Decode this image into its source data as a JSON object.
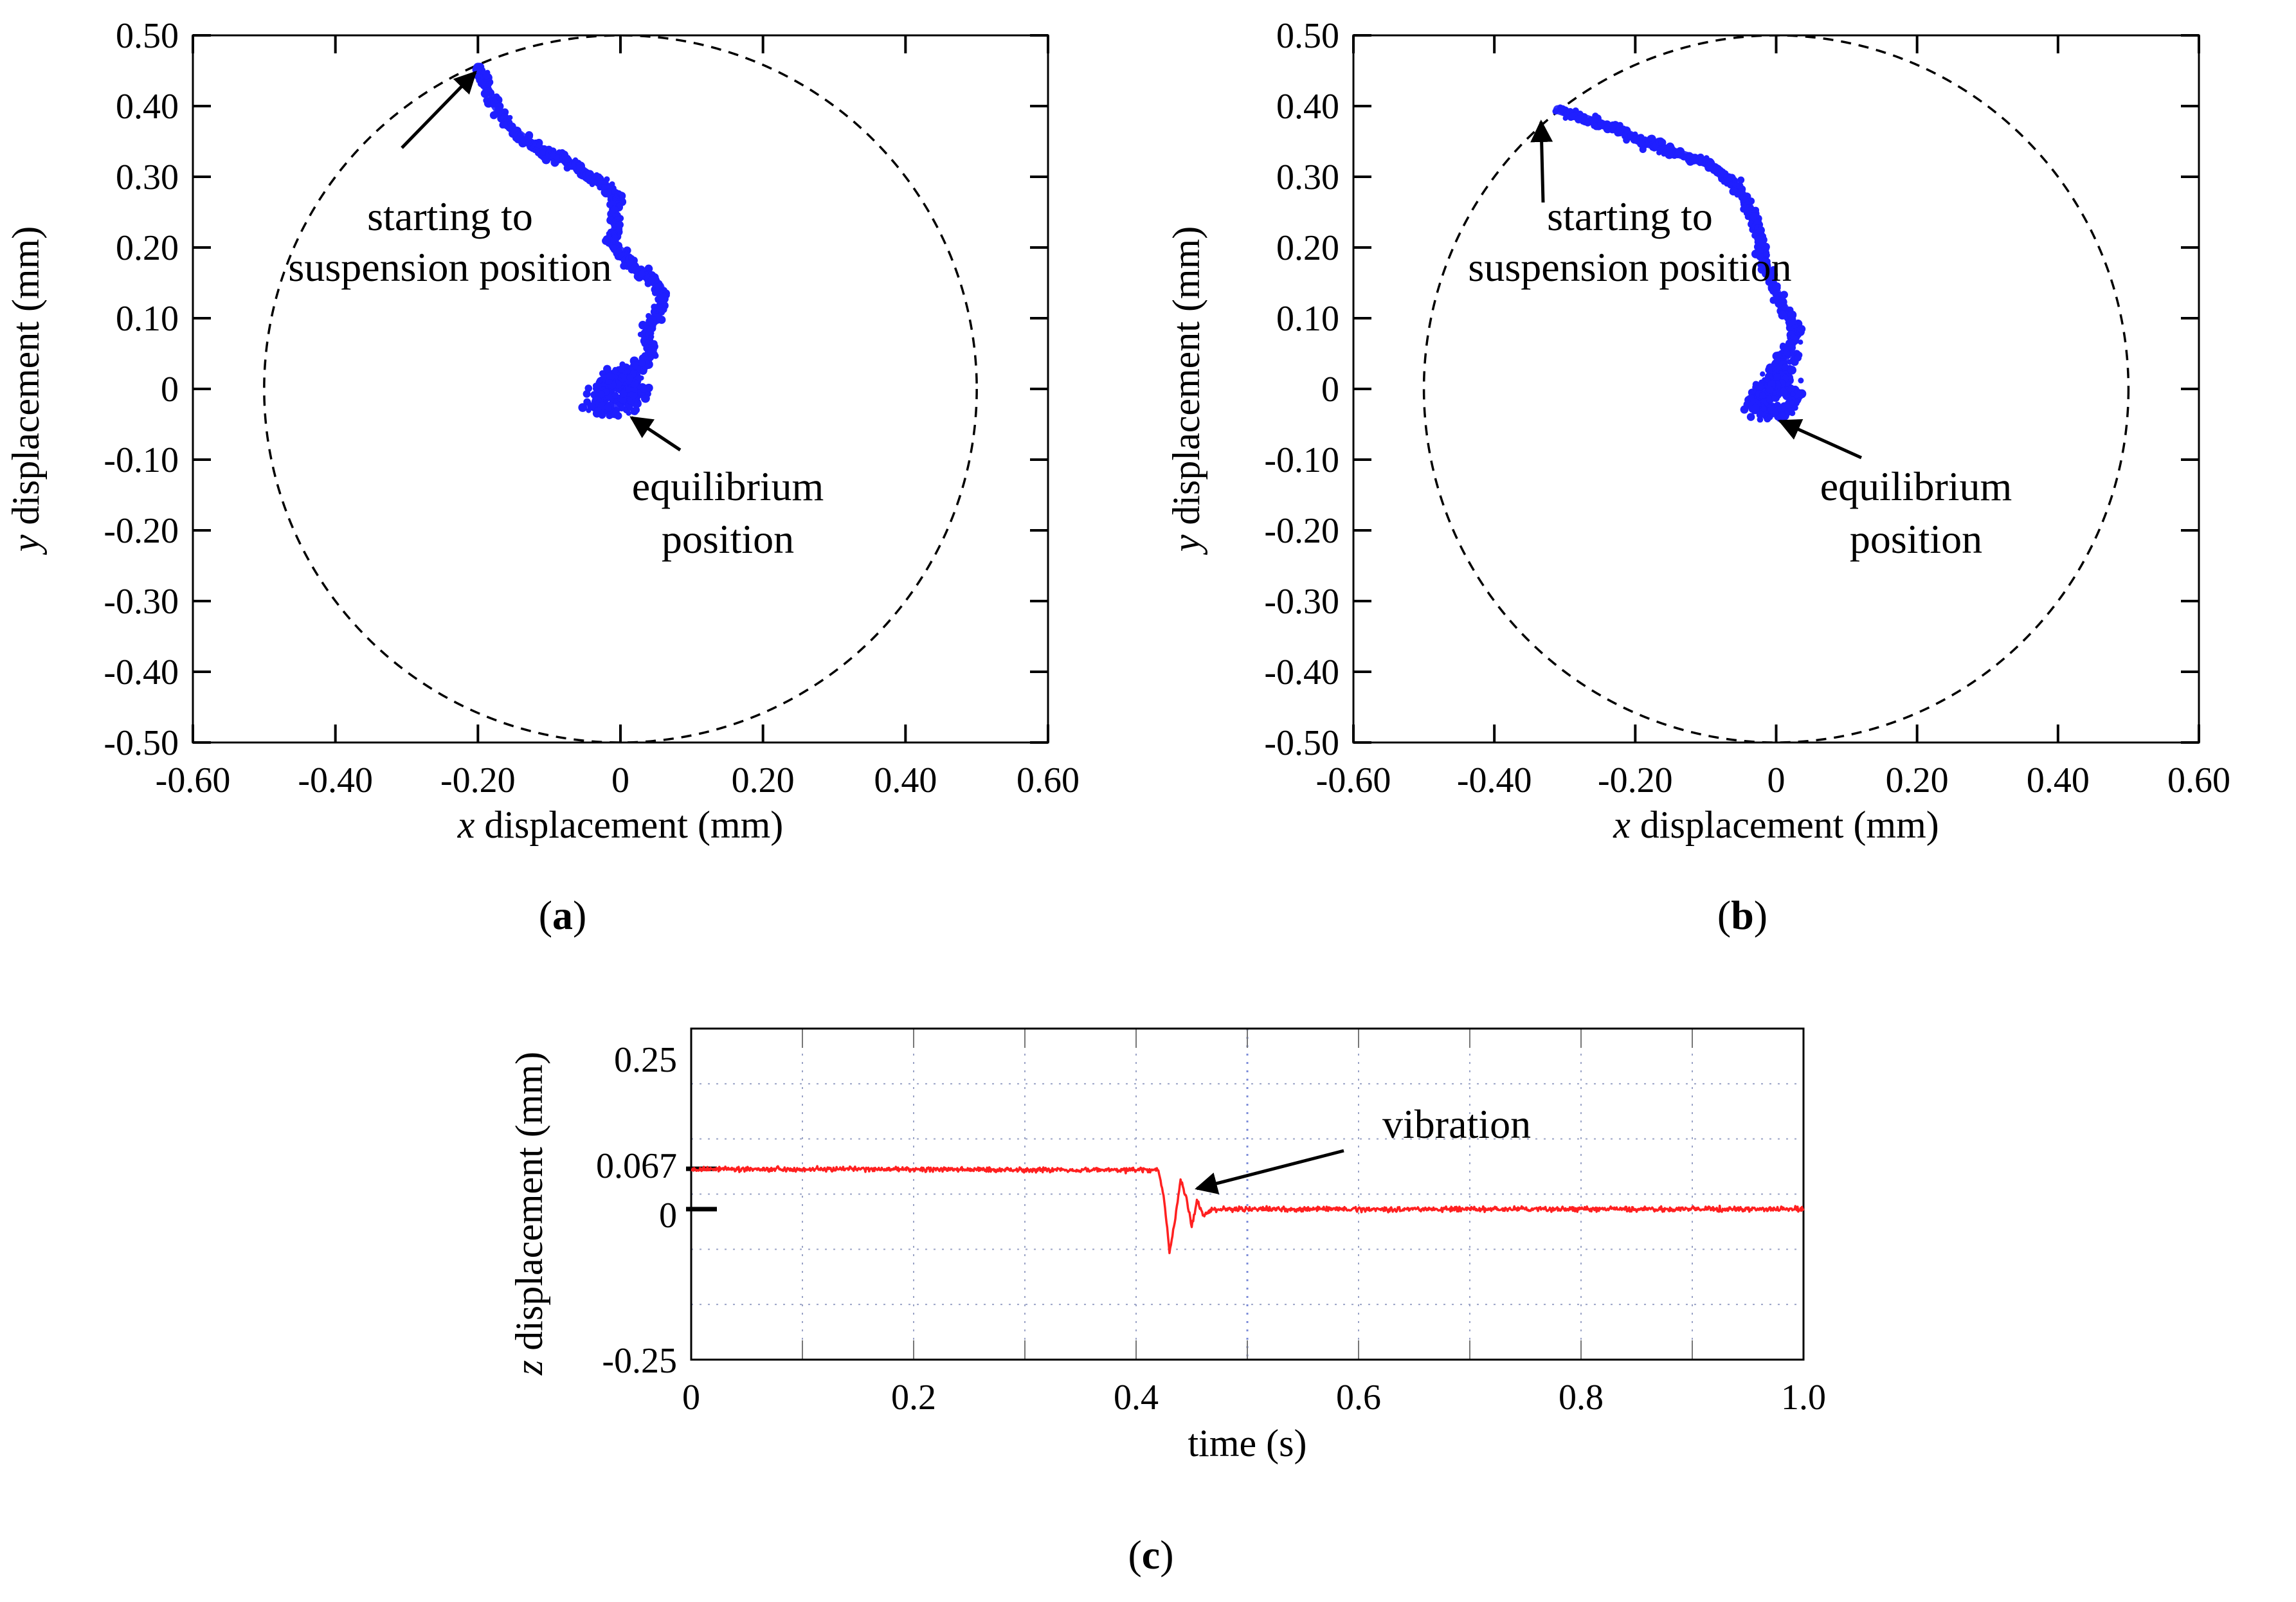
{
  "chart_data": [
    {
      "id": "a",
      "type": "scatter",
      "panel_label": "a",
      "xlabel_var": "x",
      "xlabel_rest": " displacement (mm)",
      "ylabel_var": "y",
      "ylabel_rest": " displacement (mm)",
      "xlim": [
        -0.6,
        0.6
      ],
      "ylim": [
        -0.5,
        0.5
      ],
      "x_ticks": [
        -0.6,
        -0.4,
        -0.2,
        0,
        0.2,
        0.4,
        0.6
      ],
      "x_tick_labels": [
        "-0.60",
        "-0.40",
        "-0.20",
        "0",
        "0.20",
        "0.40",
        "0.60"
      ],
      "y_ticks": [
        0.5,
        0.4,
        0.3,
        0.2,
        0.1,
        0,
        -0.1,
        -0.2,
        -0.3,
        -0.4,
        -0.5
      ],
      "y_tick_labels": [
        "0.50",
        "0.40",
        "0.30",
        "0.20",
        "0.10",
        "0",
        "-0.10",
        "-0.20",
        "-0.30",
        "-0.40",
        "-0.50"
      ],
      "boundary_circle": {
        "center": [
          0,
          0
        ],
        "radius": 0.5
      },
      "series": [
        {
          "name": "trajectory",
          "color": "#1f1fff",
          "points": [
            [
              -0.2,
              0.455
            ],
            [
              -0.19,
              0.43
            ],
            [
              -0.175,
              0.4
            ],
            [
              -0.155,
              0.37
            ],
            [
              -0.13,
              0.35
            ],
            [
              -0.105,
              0.335
            ],
            [
              -0.08,
              0.325
            ],
            [
              -0.055,
              0.31
            ],
            [
              -0.035,
              0.295
            ],
            [
              -0.02,
              0.285
            ],
            [
              -0.005,
              0.27
            ],
            [
              -0.01,
              0.25
            ],
            [
              -0.005,
              0.23
            ],
            [
              -0.015,
              0.21
            ],
            [
              0.0,
              0.195
            ],
            [
              0.015,
              0.175
            ],
            [
              0.035,
              0.16
            ],
            [
              0.055,
              0.145
            ],
            [
              0.06,
              0.13
            ],
            [
              0.055,
              0.11
            ],
            [
              0.04,
              0.09
            ],
            [
              0.035,
              0.075
            ],
            [
              0.045,
              0.055
            ],
            [
              0.035,
              0.035
            ],
            [
              0.02,
              0.025
            ],
            [
              0.005,
              0.015
            ],
            [
              -0.015,
              0.005
            ],
            [
              -0.03,
              -0.005
            ],
            [
              -0.035,
              -0.02
            ],
            [
              -0.02,
              -0.03
            ],
            [
              0.0,
              -0.025
            ],
            [
              0.015,
              -0.015
            ],
            [
              0.025,
              -0.005
            ],
            [
              0.015,
              0.01
            ],
            [
              -0.005,
              0.02
            ],
            [
              -0.025,
              0.01
            ]
          ]
        }
      ],
      "annotations": [
        {
          "lines": [
            "starting to",
            "suspension position"
          ],
          "target": [
            -0.2,
            0.455
          ]
        },
        {
          "lines": [
            "equilibrium",
            "position"
          ],
          "target": [
            0.01,
            -0.035
          ]
        }
      ]
    },
    {
      "id": "b",
      "type": "scatter",
      "panel_label": "b",
      "xlabel_var": "x",
      "xlabel_rest": " displacement (mm)",
      "ylabel_var": "y",
      "ylabel_rest": " displacement (mm)",
      "xlim": [
        -0.6,
        0.6
      ],
      "ylim": [
        -0.5,
        0.5
      ],
      "x_ticks": [
        -0.6,
        -0.4,
        -0.2,
        0,
        0.2,
        0.4,
        0.6
      ],
      "x_tick_labels": [
        "-0.60",
        "-0.40",
        "-0.20",
        "0",
        "0.20",
        "0.40",
        "0.60"
      ],
      "y_ticks": [
        0.5,
        0.4,
        0.3,
        0.2,
        0.1,
        0,
        -0.1,
        -0.2,
        -0.3,
        -0.4,
        -0.5
      ],
      "y_tick_labels": [
        "0.50",
        "0.40",
        "0.30",
        "0.20",
        "0.10",
        "0",
        "-0.10",
        "-0.20",
        "-0.30",
        "-0.40",
        "-0.50"
      ],
      "boundary_circle": {
        "center": [
          0,
          0
        ],
        "radius": 0.5
      },
      "series": [
        {
          "name": "trajectory",
          "color": "#1f1fff",
          "points": [
            [
              -0.31,
              0.395
            ],
            [
              -0.28,
              0.385
            ],
            [
              -0.25,
              0.375
            ],
            [
              -0.22,
              0.365
            ],
            [
              -0.19,
              0.35
            ],
            [
              -0.16,
              0.34
            ],
            [
              -0.13,
              0.33
            ],
            [
              -0.1,
              0.32
            ],
            [
              -0.08,
              0.305
            ],
            [
              -0.06,
              0.29
            ],
            [
              -0.045,
              0.27
            ],
            [
              -0.035,
              0.25
            ],
            [
              -0.025,
              0.225
            ],
            [
              -0.02,
              0.2
            ],
            [
              -0.015,
              0.175
            ],
            [
              -0.005,
              0.15
            ],
            [
              0.005,
              0.125
            ],
            [
              0.02,
              0.1
            ],
            [
              0.03,
              0.08
            ],
            [
              0.02,
              0.06
            ],
            [
              0.01,
              0.04
            ],
            [
              0.005,
              0.02
            ],
            [
              -0.01,
              0.005
            ],
            [
              -0.025,
              -0.01
            ],
            [
              -0.03,
              -0.025
            ],
            [
              -0.01,
              -0.035
            ],
            [
              0.01,
              -0.03
            ],
            [
              0.025,
              -0.015
            ],
            [
              0.02,
              0.0
            ],
            [
              0.0,
              0.01
            ],
            [
              -0.02,
              0.0
            ]
          ]
        }
      ],
      "annotations": [
        {
          "lines": [
            "starting to",
            "suspension position"
          ],
          "target": [
            -0.33,
            0.385
          ]
        },
        {
          "lines": [
            "equilibrium",
            "position"
          ],
          "target": [
            0.0,
            -0.04
          ]
        }
      ]
    },
    {
      "id": "c",
      "type": "line",
      "panel_label": "c",
      "xlabel": "time (s)",
      "ylabel_var": "z",
      "ylabel_rest": " displacement (mm)",
      "xlim": [
        0,
        1.0
      ],
      "ylim": [
        -0.25,
        0.3
      ],
      "x_ticks": [
        0,
        0.2,
        0.4,
        0.6,
        0.8,
        1.0
      ],
      "x_tick_labels": [
        "0",
        "0.2",
        "0.4",
        "0.6",
        "0.8",
        "1.0"
      ],
      "y_ticks": [
        0.25,
        0.067,
        0,
        -0.25
      ],
      "y_tick_labels": [
        "0.25",
        "0.067",
        "0",
        "-0.25"
      ],
      "series": [
        {
          "name": "z displacement",
          "color": "#ff2020",
          "baseline_before": 0.067,
          "baseline_after": 0.0,
          "transition_time": 0.43,
          "t": [
            0,
            0.42,
            0.425,
            0.43,
            0.435,
            0.44,
            0.445,
            0.45,
            0.455,
            0.46,
            0.47,
            1.0
          ],
          "z": [
            0.067,
            0.065,
            0.02,
            -0.07,
            -0.02,
            0.05,
            0.02,
            -0.03,
            0.015,
            -0.01,
            0.0,
            0.0
          ]
        }
      ],
      "annotations": [
        {
          "lines": [
            "vibration"
          ],
          "target": [
            0.45,
            0.03
          ]
        }
      ]
    }
  ]
}
